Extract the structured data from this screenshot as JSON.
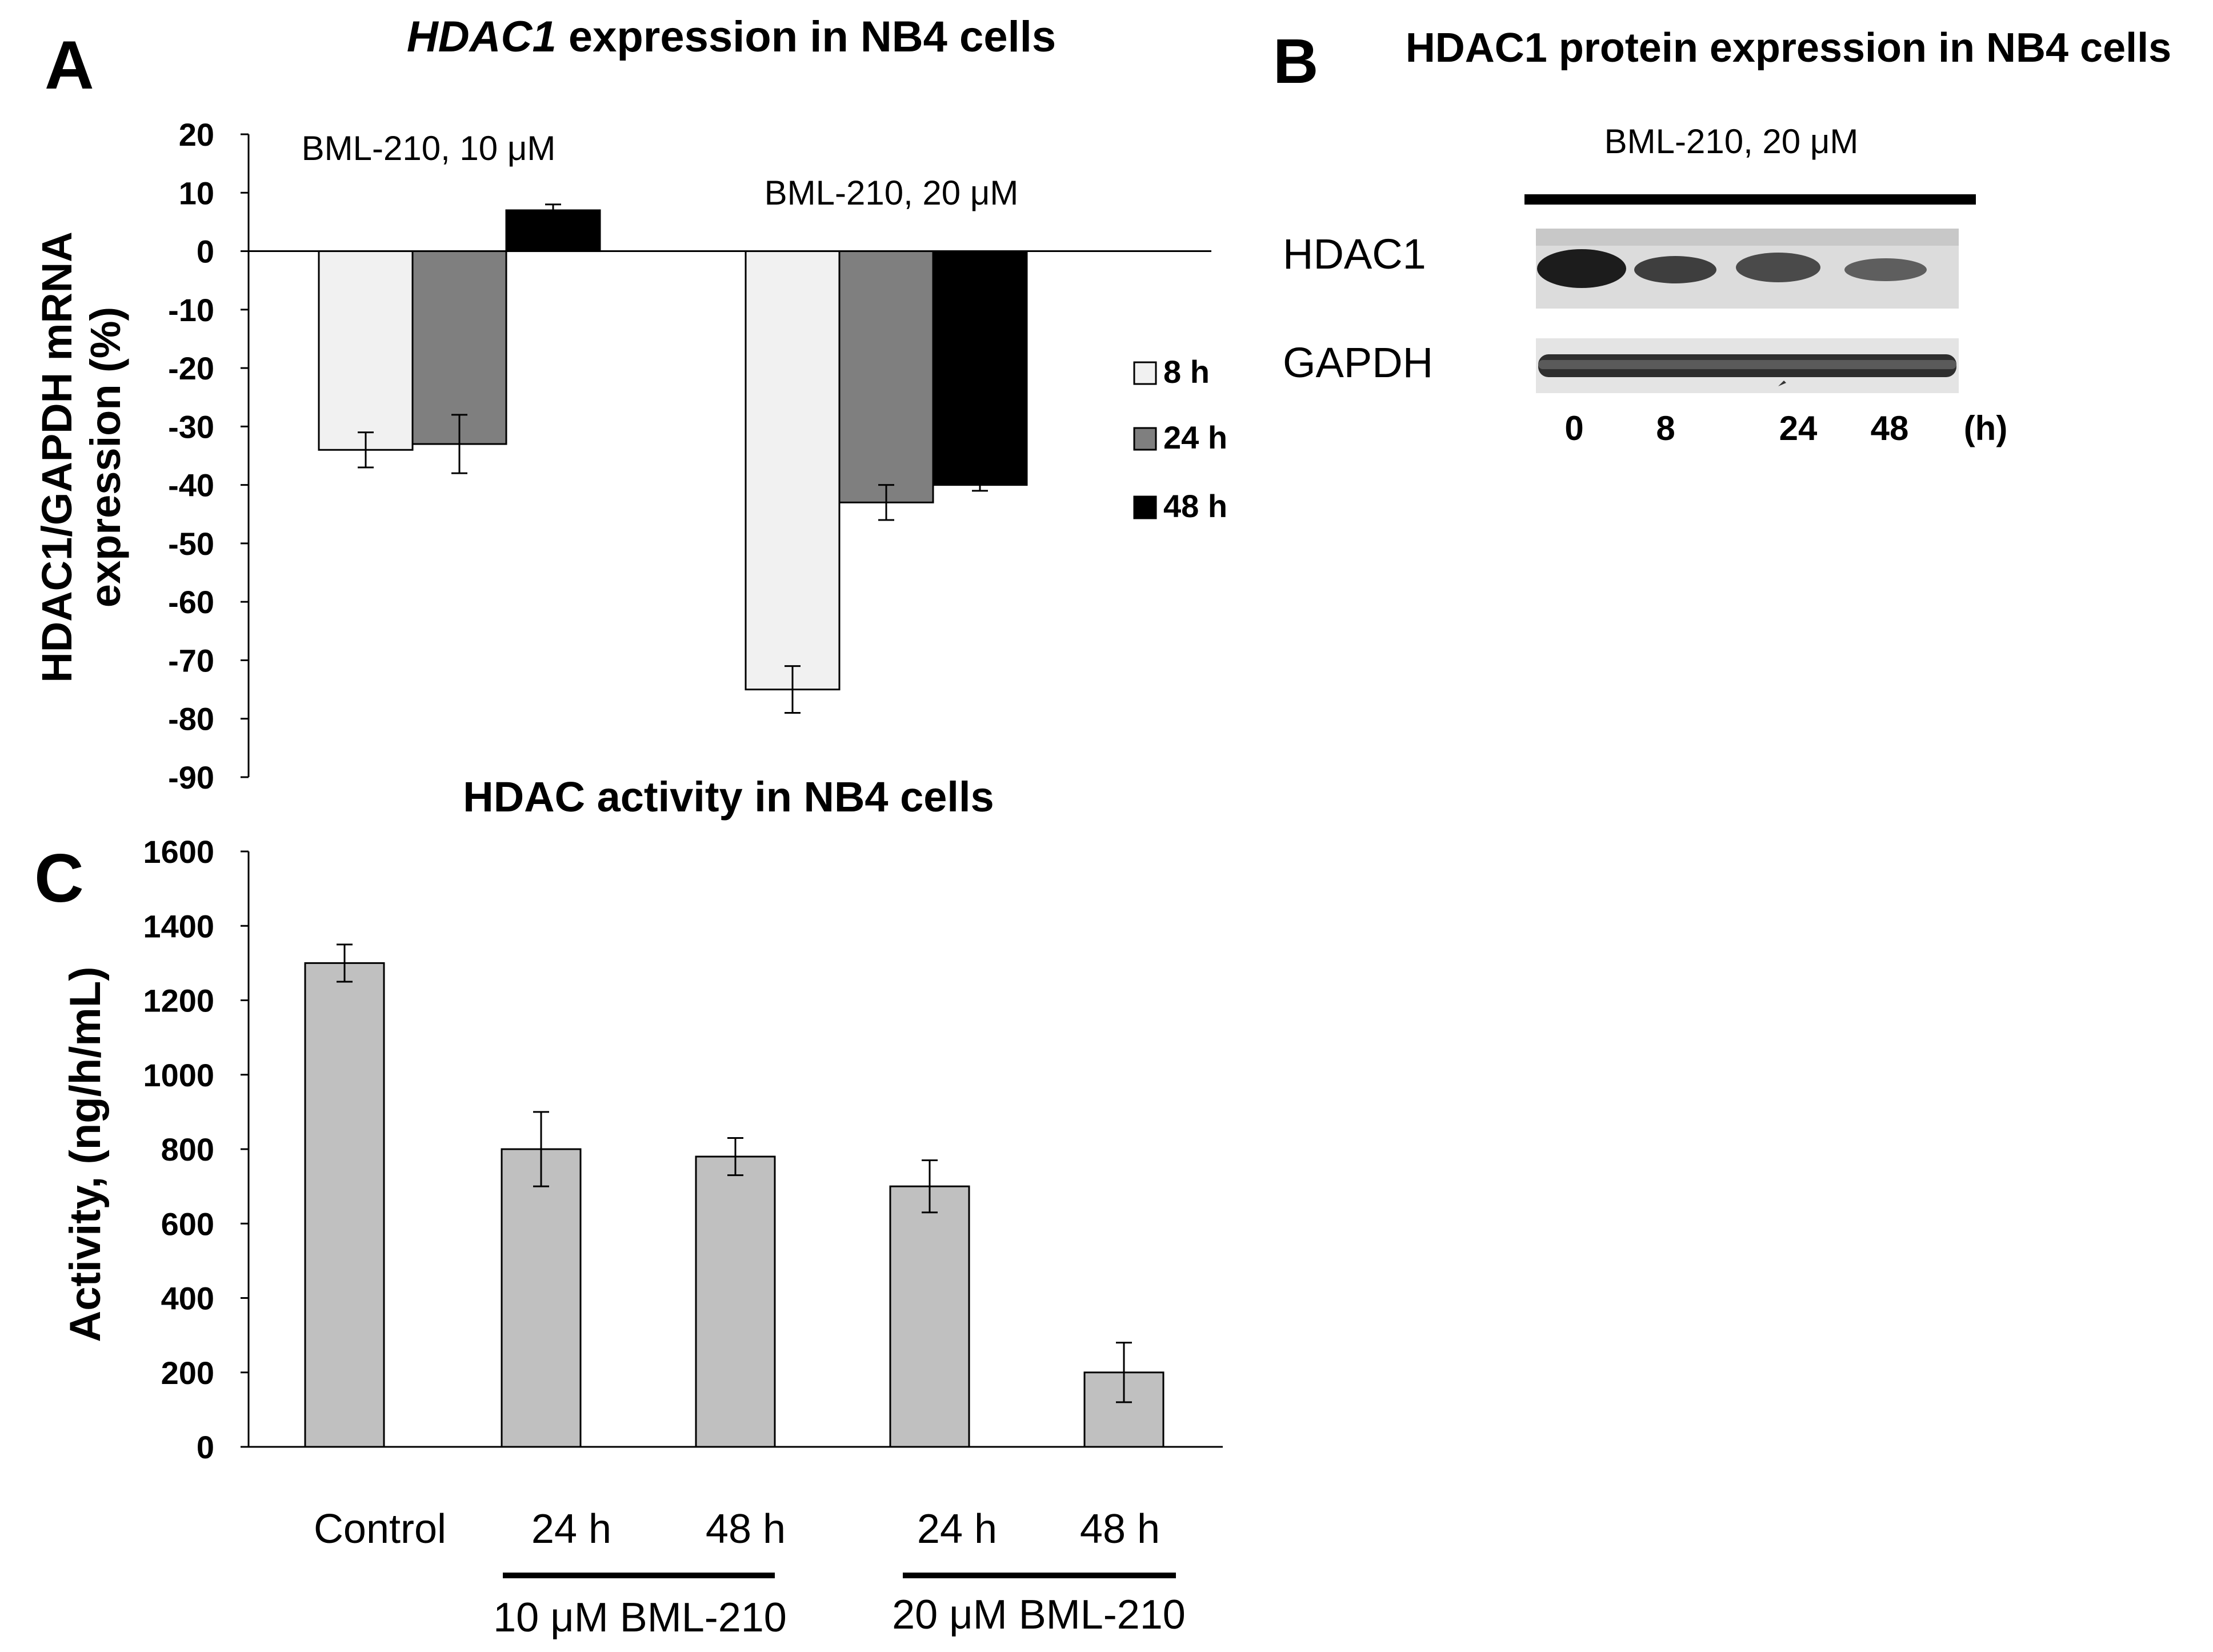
{
  "figure": {
    "panel_labels": {
      "a": "A",
      "b": "B",
      "c": "C"
    }
  },
  "chart_data": [
    {
      "id": "A",
      "type": "bar",
      "title_italic": "HDAC1",
      "title_rest": " expression in NB4 cells",
      "ylabel_lines": [
        "HDAC1/GAPDH mRNA",
        "expression (%)"
      ],
      "ylim": [
        -90,
        20
      ],
      "yticks": [
        20,
        10,
        0,
        -10,
        -20,
        -30,
        -40,
        -50,
        -60,
        -70,
        -80,
        -90
      ],
      "groups": [
        {
          "label": "BML-210, 10 μM",
          "bars": [
            {
              "series": "8 h",
              "value": -34,
              "error": 3
            },
            {
              "series": "24 h",
              "value": -33,
              "error": 5
            },
            {
              "series": "48 h",
              "value": 7,
              "error": 1
            }
          ]
        },
        {
          "label": "BML-210, 20 μM",
          "bars": [
            {
              "series": "8 h",
              "value": -75,
              "error": 4
            },
            {
              "series": "24 h",
              "value": -43,
              "error": 3
            },
            {
              "series": "48 h",
              "value": -40,
              "error": 1
            }
          ]
        }
      ],
      "series": [
        {
          "name": "8 h",
          "color": "#f1f1f1"
        },
        {
          "name": "24 h",
          "color": "#7f7f7f"
        },
        {
          "name": "48 h",
          "color": "#000000"
        }
      ]
    },
    {
      "id": "C",
      "type": "bar",
      "title": "HDAC activity in NB4 cells",
      "ylabel": "Activity, (ng/h/mL)",
      "ylim": [
        0,
        1600
      ],
      "yticks": [
        1600,
        1400,
        1200,
        1000,
        800,
        600,
        400,
        200,
        0
      ],
      "categories": [
        "Control",
        "24 h",
        "48 h",
        "24 h",
        "48 h"
      ],
      "values": [
        1300,
        800,
        780,
        700,
        200
      ],
      "errors": [
        50,
        100,
        50,
        70,
        80
      ],
      "bar_color": "#c0c0c0",
      "group_labels": [
        "10 μM BML-210",
        "20 μM BML-210"
      ]
    }
  ],
  "blot": {
    "title": "HDAC1 protein expression in NB4 cells",
    "treatment": "BML-210,  20 μM",
    "row_labels": [
      "HDAC1",
      "GAPDH"
    ],
    "time_labels": [
      "0",
      "8",
      "24",
      "48"
    ],
    "time_unit": "(h)"
  }
}
